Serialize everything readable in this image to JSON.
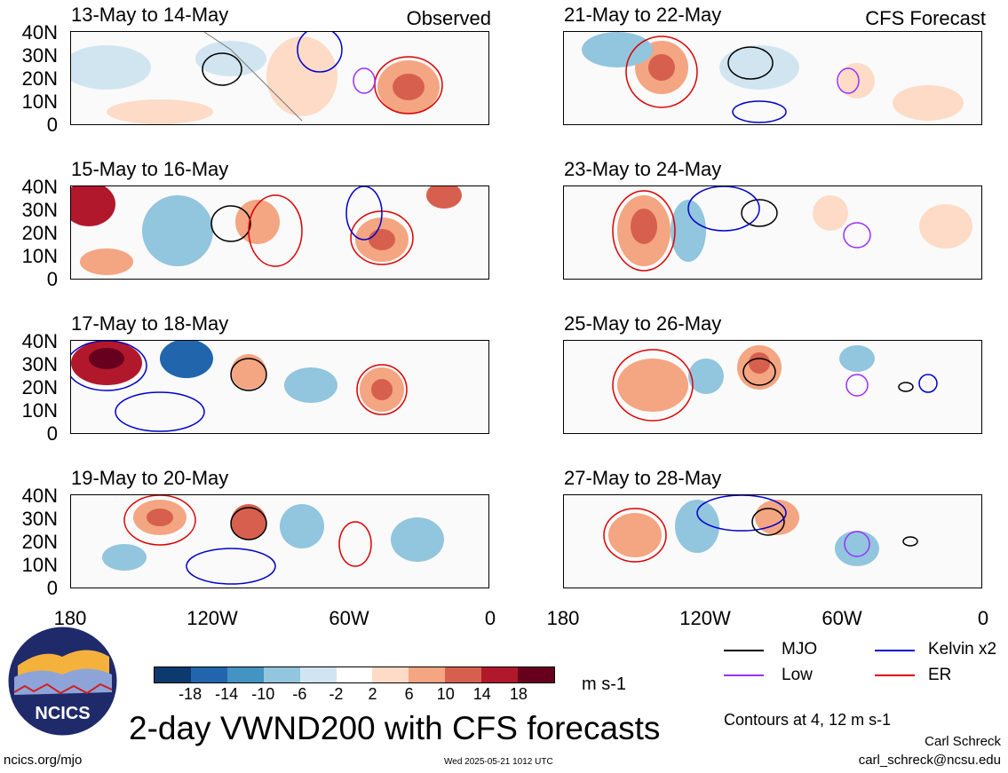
{
  "panels": [
    {
      "title": "13-May to 14-May",
      "tag": "Observed"
    },
    {
      "title": "21-May to 22-May",
      "tag": "CFS Forecast"
    },
    {
      "title": "15-May to 16-May",
      "tag": ""
    },
    {
      "title": "23-May to 24-May",
      "tag": ""
    },
    {
      "title": "17-May to 18-May",
      "tag": ""
    },
    {
      "title": "25-May to 26-May",
      "tag": ""
    },
    {
      "title": "19-May to 20-May",
      "tag": ""
    },
    {
      "title": "27-May to 28-May",
      "tag": ""
    }
  ],
  "lat_labels": [
    "40N",
    "30N",
    "20N",
    "10N",
    "0"
  ],
  "lon_labels": [
    "180",
    "120W",
    "60W",
    "0"
  ],
  "colorbar": {
    "ticks": [
      "-18",
      "-14",
      "-10",
      "-6",
      "-2",
      "2",
      "6",
      "10",
      "14",
      "18"
    ],
    "colors": [
      "#0d3a6e",
      "#2166ac",
      "#4393c3",
      "#92c5de",
      "#d1e5f0",
      "#ffffff",
      "#fddbc7",
      "#f4a582",
      "#d6604d",
      "#b2182b",
      "#67001f"
    ],
    "units": "m s-1"
  },
  "legend": [
    {
      "label": "MJO",
      "color": "#000000"
    },
    {
      "label": "Kelvin x2",
      "color": "#0000cc"
    },
    {
      "label": "Low",
      "color": "#9b30ff"
    },
    {
      "label": "ER",
      "color": "#dd0000"
    }
  ],
  "contour_note": "Contours at 4, 12 m s-1",
  "main_title": "2-day VWND200 with CFS forecasts",
  "author": "Carl Schreck",
  "email": "carl_schreck@ncsu.edu",
  "site": "ncics.org/mjo",
  "timestamp": "Wed 2025-05-21 1012 UTC",
  "logo_text": "NCICS"
}
